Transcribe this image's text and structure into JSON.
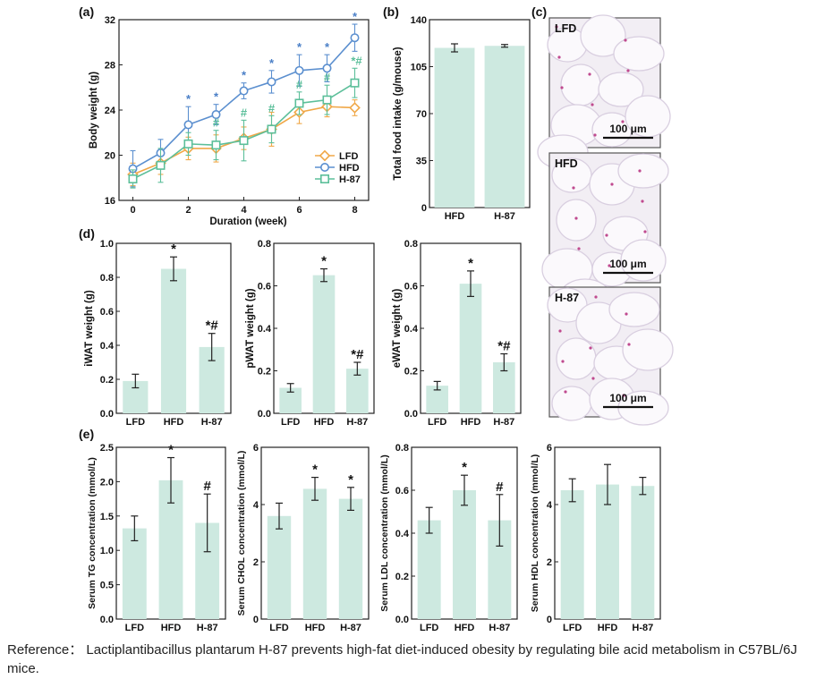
{
  "reference": "Reference： Lactiplantibacillus plantarum H-87 prevents high-fat diet-induced obesity by regulating bile acid metabolism in C57BL/6J mice.",
  "colors": {
    "bar": "#cde9e0",
    "LFD": "#f0a848",
    "HFD": "#5b8fcf",
    "H-87": "#5cbf9a",
    "mark_blue": "#4a7fc7",
    "mark_green": "#5cbf9a"
  },
  "panel_c": {
    "label": "(c)",
    "images": [
      {
        "label": "LFD",
        "scale_bar": "100 μm"
      },
      {
        "label": "HFD",
        "scale_bar": "100 μm"
      },
      {
        "label": "H-87",
        "scale_bar": "100 μm"
      }
    ]
  },
  "chart_data": [
    {
      "id": "a",
      "panel_label": "(a)",
      "type": "line",
      "xlabel": "Duration (week)",
      "ylabel": "Body weight (g)",
      "x": [
        0,
        1,
        2,
        3,
        4,
        5,
        6,
        7,
        8
      ],
      "xlim": [
        -0.5,
        8.5
      ],
      "ylim": [
        16,
        32
      ],
      "xticks": [
        0,
        2,
        4,
        6,
        8
      ],
      "yticks": [
        16,
        20,
        24,
        28,
        32
      ],
      "series": [
        {
          "name": "LFD",
          "color": "#f0a848",
          "marker": "diamond",
          "values": [
            18.3,
            19.3,
            20.6,
            20.6,
            21.5,
            22.3,
            23.8,
            24.3,
            24.2
          ],
          "errors": [
            1.0,
            1.0,
            1.0,
            1.2,
            1.0,
            1.5,
            1.0,
            0.9,
            0.7
          ]
        },
        {
          "name": "HFD",
          "color": "#5b8fcf",
          "marker": "circle",
          "values": [
            18.8,
            20.2,
            22.7,
            23.6,
            25.7,
            26.5,
            27.5,
            27.7,
            30.4
          ],
          "errors": [
            1.6,
            1.2,
            1.6,
            0.9,
            0.7,
            1.0,
            1.4,
            1.2,
            1.2
          ],
          "annotations": [
            "",
            "",
            "*",
            "*",
            "*",
            "*",
            "*",
            "*",
            "*"
          ]
        },
        {
          "name": "H-87",
          "color": "#5cbf9a",
          "marker": "square",
          "values": [
            17.9,
            19.1,
            21.0,
            20.9,
            21.3,
            22.3,
            24.6,
            24.9,
            26.4
          ],
          "errors": [
            0.8,
            1.5,
            1.0,
            1.3,
            1.8,
            1.2,
            1.0,
            1.3,
            1.3
          ],
          "annotations": [
            "",
            "",
            "",
            "#",
            "#",
            "#",
            "#",
            "#",
            "*#"
          ]
        }
      ],
      "legend_position": "bottom-right"
    },
    {
      "id": "b",
      "panel_label": "(b)",
      "type": "bar",
      "ylabel": "Total food intake (g/mouse)",
      "categories": [
        "HFD",
        "H-87"
      ],
      "values": [
        119,
        120.5
      ],
      "errors": [
        3,
        1
      ],
      "ylim": [
        0,
        140
      ],
      "yticks": [
        0,
        35,
        70,
        105,
        140
      ]
    },
    {
      "id": "d1",
      "panel_label": "(d)",
      "type": "bar",
      "ylabel": "iWAT weight (g)",
      "categories": [
        "LFD",
        "HFD",
        "H-87"
      ],
      "values": [
        0.19,
        0.85,
        0.39
      ],
      "errors": [
        0.04,
        0.07,
        0.08
      ],
      "annotations": [
        "",
        "*",
        "*#"
      ],
      "ylim": [
        0,
        1.0
      ],
      "yticks": [
        0.0,
        0.2,
        0.4,
        0.6,
        0.8,
        1.0
      ],
      "tick_labels": [
        "0.0",
        "0.2",
        "0.4",
        "0.6",
        "0.8",
        "1.0"
      ]
    },
    {
      "id": "d2",
      "type": "bar",
      "ylabel": "pWAT weight (g)",
      "categories": [
        "LFD",
        "HFD",
        "H-87"
      ],
      "values": [
        0.12,
        0.65,
        0.21
      ],
      "errors": [
        0.02,
        0.03,
        0.03
      ],
      "annotations": [
        "",
        "*",
        "*#"
      ],
      "ylim": [
        0,
        0.8
      ],
      "yticks": [
        0.0,
        0.2,
        0.4,
        0.6,
        0.8
      ],
      "tick_labels": [
        "0.0",
        "0.2",
        "0.4",
        "0.6",
        "0.8"
      ]
    },
    {
      "id": "d3",
      "type": "bar",
      "ylabel": "eWAT weight (g)",
      "categories": [
        "LFD",
        "HFD",
        "H-87"
      ],
      "values": [
        0.13,
        0.61,
        0.24
      ],
      "errors": [
        0.02,
        0.06,
        0.04
      ],
      "annotations": [
        "",
        "*",
        "*#"
      ],
      "ylim": [
        0,
        0.8
      ],
      "yticks": [
        0.0,
        0.2,
        0.4,
        0.6,
        0.8
      ],
      "tick_labels": [
        "0.0",
        "0.2",
        "0.4",
        "0.6",
        "0.8"
      ]
    },
    {
      "id": "e1",
      "panel_label": "(e)",
      "type": "bar",
      "ylabel": "Serum TG concentration (mmol/L)",
      "categories": [
        "LFD",
        "HFD",
        "H-87"
      ],
      "values": [
        1.32,
        2.02,
        1.4
      ],
      "errors": [
        0.18,
        0.33,
        0.42
      ],
      "annotations": [
        "",
        "*",
        "#"
      ],
      "ylim": [
        0,
        2.5
      ],
      "yticks": [
        0.0,
        0.5,
        1.0,
        1.5,
        2.0,
        2.5
      ],
      "tick_labels": [
        "0.0",
        "0.5",
        "1.0",
        "1.5",
        "2.0",
        "2.5"
      ]
    },
    {
      "id": "e2",
      "type": "bar",
      "ylabel": "Serum CHOL concentration (mmol/L)",
      "categories": [
        "LFD",
        "HFD",
        "H-87"
      ],
      "values": [
        3.6,
        4.55,
        4.2
      ],
      "errors": [
        0.45,
        0.4,
        0.4
      ],
      "annotations": [
        "",
        "*",
        "*"
      ],
      "ylim": [
        0,
        6
      ],
      "yticks": [
        0,
        2,
        4,
        6
      ],
      "tick_labels": [
        "0",
        "2",
        "4",
        "6"
      ]
    },
    {
      "id": "e3",
      "type": "bar",
      "ylabel": "Serum LDL concentration (mmol/L)",
      "categories": [
        "LFD",
        "HFD",
        "H-87"
      ],
      "values": [
        0.46,
        0.6,
        0.46
      ],
      "errors": [
        0.06,
        0.07,
        0.12
      ],
      "annotations": [
        "",
        "*",
        "#"
      ],
      "ylim": [
        0,
        0.8
      ],
      "yticks": [
        0.0,
        0.2,
        0.4,
        0.6,
        0.8
      ],
      "tick_labels": [
        "0.0",
        "0.2",
        "0.4",
        "0.6",
        "0.8"
      ]
    },
    {
      "id": "e4",
      "type": "bar",
      "ylabel": "Serum HDL concentration (mmol/L)",
      "categories": [
        "LFD",
        "HFD",
        "H-87"
      ],
      "values": [
        4.5,
        4.7,
        4.65
      ],
      "errors": [
        0.4,
        0.7,
        0.3
      ],
      "annotations": [
        "",
        "",
        ""
      ],
      "ylim": [
        0,
        6
      ],
      "yticks": [
        0,
        2,
        4,
        6
      ],
      "tick_labels": [
        "0",
        "2",
        "4",
        "6"
      ]
    }
  ]
}
